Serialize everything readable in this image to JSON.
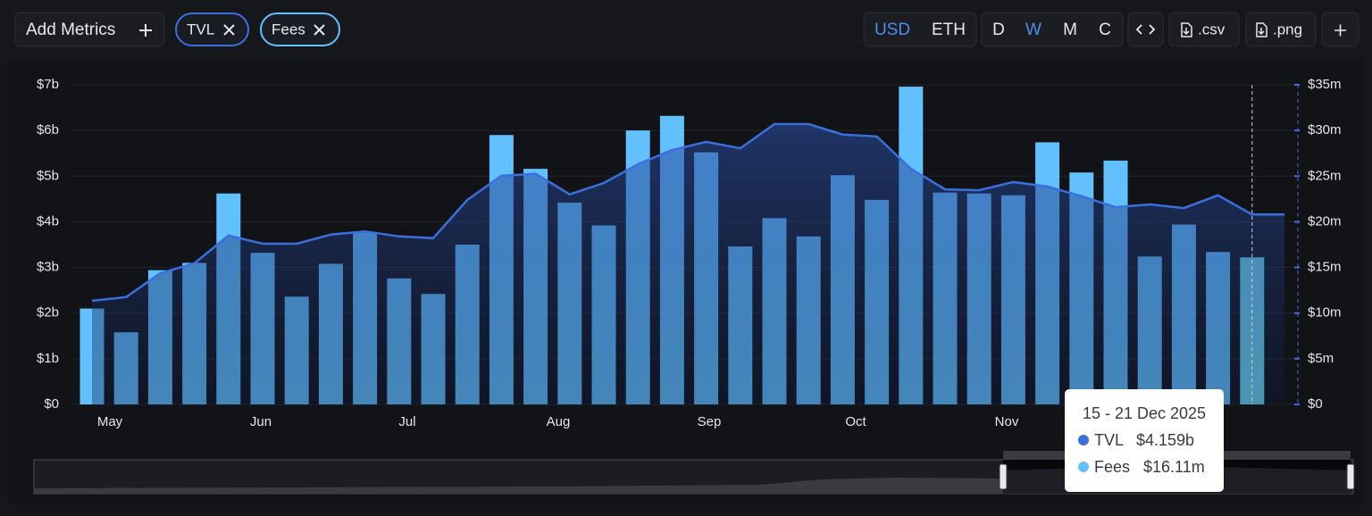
{
  "toolbar": {
    "add_metrics": "Add Metrics",
    "currencies": [
      "USD",
      "ETH"
    ],
    "periods": [
      "D",
      "W",
      "M",
      "C"
    ],
    "exports": [
      ".csv",
      ".png"
    ]
  },
  "chart_data": {
    "type": "combo",
    "categories": [
      null,
      null,
      null,
      null,
      null,
      null,
      null,
      null,
      null,
      null,
      null,
      null,
      null,
      null,
      null,
      null,
      null,
      null,
      null,
      null,
      null,
      null,
      null,
      null,
      null,
      null,
      null,
      null,
      null,
      null,
      null,
      null,
      null,
      null,
      null
    ],
    "month_labels": [
      "May",
      "Jun",
      "Jul",
      "Aug",
      "Sep",
      "Oct",
      "Nov"
    ],
    "series": [
      {
        "name": "TVL",
        "type": "line",
        "color": "#3b6fe0",
        "axis": "y",
        "values": [
          2.27,
          2.35,
          2.87,
          3.09,
          3.7,
          3.52,
          3.52,
          3.72,
          3.79,
          3.68,
          3.64,
          4.48,
          5.01,
          5.05,
          4.6,
          4.85,
          5.26,
          5.57,
          5.75,
          5.61,
          6.14,
          6.14,
          5.91,
          5.87,
          5.16,
          4.71,
          4.69,
          4.87,
          4.77,
          4.56,
          4.32,
          4.38,
          4.3,
          4.58,
          4.159
        ]
      },
      {
        "name": "Fees",
        "type": "bar",
        "color": "#62c0ff",
        "axis": "y2",
        "values": [
          10.5,
          7.9,
          14.7,
          15.5,
          23.1,
          16.6,
          11.8,
          15.4,
          18.8,
          13.8,
          12.1,
          17.5,
          29.5,
          25.8,
          22.1,
          19.6,
          30.0,
          31.6,
          27.6,
          17.3,
          20.4,
          18.4,
          25.1,
          22.4,
          34.8,
          23.2,
          23.1,
          22.9,
          28.7,
          25.4,
          26.7,
          16.2,
          19.7,
          16.7,
          16.11
        ]
      }
    ],
    "ylim": [
      0,
      7
    ],
    "yticks": [
      {
        "value": 0,
        "label": "$0"
      },
      {
        "value": 1,
        "label": "$1b"
      },
      {
        "value": 2,
        "label": "$2b"
      },
      {
        "value": 3,
        "label": "$3b"
      },
      {
        "value": 4,
        "label": "$4b"
      },
      {
        "value": 5,
        "label": "$5b"
      },
      {
        "value": 6,
        "label": "$6b"
      },
      {
        "value": 7,
        "label": "$7b"
      }
    ],
    "y2lim": [
      0,
      35
    ],
    "y2ticks": [
      {
        "value": 0,
        "label": "$0"
      },
      {
        "value": 5,
        "label": "$5m"
      },
      {
        "value": 10,
        "label": "$10m"
      },
      {
        "value": 15,
        "label": "$15m"
      },
      {
        "value": 20,
        "label": "$20m"
      },
      {
        "value": 25,
        "label": "$25m"
      },
      {
        "value": 30,
        "label": "$30m"
      },
      {
        "value": 35,
        "label": "$35m"
      }
    ],
    "grid": true,
    "tooltip": {
      "title": "15 - 21 Dec 2025",
      "value_labels": [
        "$4.159b",
        "$16.11m"
      ]
    }
  }
}
